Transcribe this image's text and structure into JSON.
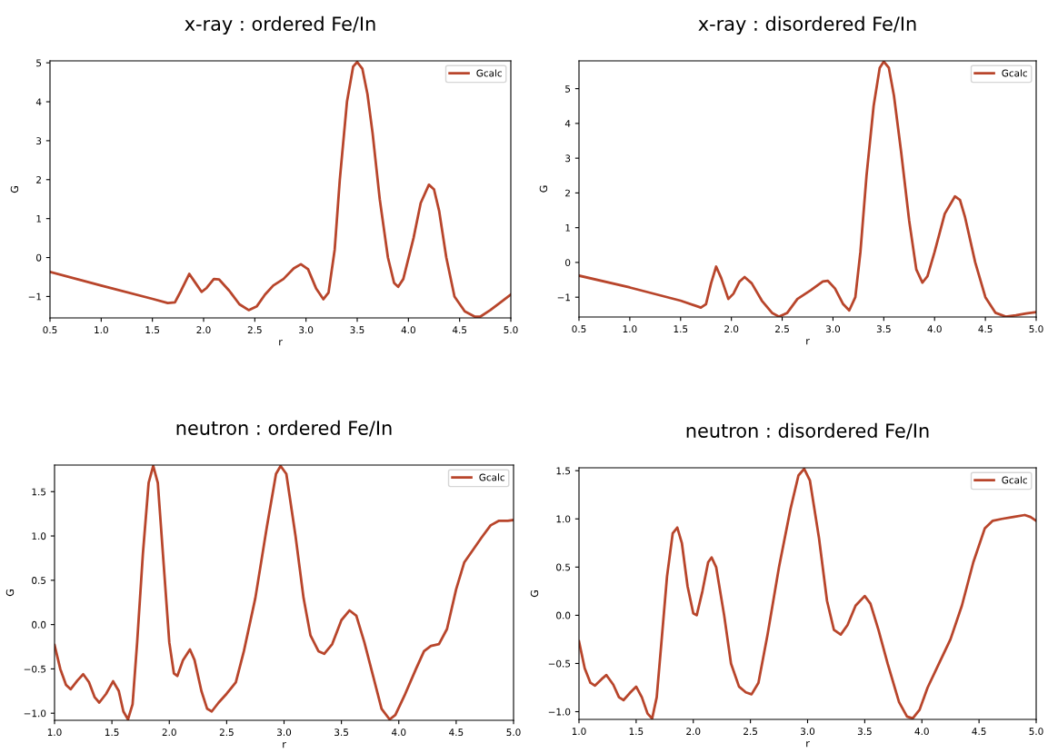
{
  "chart_data": [
    {
      "type": "line",
      "title": "x-ray : ordered Fe/In",
      "xlabel": "r",
      "ylabel": "G",
      "legend": "top right",
      "grid": false,
      "marker": "none",
      "line_style": "solid",
      "xlim": [
        0.5,
        5.0
      ],
      "ylim": [
        -1.55,
        5.05
      ],
      "xticks": [
        {
          "value": 0.5,
          "label": "0.5"
        },
        {
          "value": 1.0,
          "label": "1.0"
        },
        {
          "value": 1.5,
          "label": "1.5"
        },
        {
          "value": 2.0,
          "label": "2.0"
        },
        {
          "value": 2.5,
          "label": "2.5"
        },
        {
          "value": 3.0,
          "label": "3.0"
        },
        {
          "value": 3.5,
          "label": "3.5"
        },
        {
          "value": 4.0,
          "label": "4.0"
        },
        {
          "value": 4.5,
          "label": "4.5"
        },
        {
          "value": 5.0,
          "label": "5.0"
        }
      ],
      "yticks": [
        {
          "value": -1,
          "label": "−1"
        },
        0,
        1,
        2,
        3,
        4,
        5
      ],
      "series": [
        {
          "name": "Gcalc",
          "color": "#b8452b",
          "x": [
            0.5,
            1.0,
            1.5,
            1.65,
            1.72,
            1.78,
            1.86,
            1.92,
            1.98,
            2.03,
            2.1,
            2.15,
            2.25,
            2.35,
            2.44,
            2.52,
            2.6,
            2.68,
            2.78,
            2.88,
            2.95,
            3.02,
            3.1,
            3.17,
            3.22,
            3.28,
            3.33,
            3.4,
            3.46,
            3.5,
            3.55,
            3.6,
            3.65,
            3.72,
            3.8,
            3.86,
            3.9,
            3.95,
            4.05,
            4.12,
            4.2,
            4.25,
            4.3,
            4.37,
            4.45,
            4.55,
            4.65,
            4.7,
            4.8,
            4.9,
            5.0
          ],
          "values": [
            -0.37,
            -0.72,
            -1.06,
            -1.17,
            -1.15,
            -0.85,
            -0.42,
            -0.65,
            -0.88,
            -0.78,
            -0.55,
            -0.56,
            -0.85,
            -1.2,
            -1.35,
            -1.25,
            -0.95,
            -0.72,
            -0.55,
            -0.28,
            -0.17,
            -0.3,
            -0.8,
            -1.07,
            -0.9,
            0.2,
            2.0,
            4.0,
            4.9,
            5.02,
            4.85,
            4.2,
            3.2,
            1.5,
            0.0,
            -0.65,
            -0.75,
            -0.55,
            0.5,
            1.4,
            1.87,
            1.75,
            1.2,
            0.0,
            -1.0,
            -1.38,
            -1.52,
            -1.52,
            -1.35,
            -1.15,
            -0.95
          ]
        }
      ]
    },
    {
      "type": "line",
      "title": "x-ray : disordered Fe/In",
      "xlabel": "r",
      "ylabel": "G",
      "legend": "top right",
      "grid": false,
      "marker": "none",
      "line_style": "solid",
      "xlim": [
        0.5,
        5.0
      ],
      "ylim": [
        -1.57,
        5.8
      ],
      "xticks": [
        {
          "value": 0.5,
          "label": "0.5"
        },
        {
          "value": 1.0,
          "label": "1.0"
        },
        {
          "value": 1.5,
          "label": "1.5"
        },
        {
          "value": 2.0,
          "label": "2.0"
        },
        {
          "value": 2.5,
          "label": "2.5"
        },
        {
          "value": 3.0,
          "label": "3.0"
        },
        {
          "value": 3.5,
          "label": "3.5"
        },
        {
          "value": 4.0,
          "label": "4.0"
        },
        {
          "value": 4.5,
          "label": "4.5"
        },
        {
          "value": 5.0,
          "label": "5.0"
        }
      ],
      "yticks": [
        {
          "value": -1,
          "label": "−1"
        },
        0,
        1,
        2,
        3,
        4,
        5
      ],
      "series": [
        {
          "name": "Gcalc",
          "color": "#b8452b",
          "x": [
            0.5,
            1.0,
            1.5,
            1.7,
            1.75,
            1.8,
            1.85,
            1.9,
            1.97,
            2.02,
            2.08,
            2.13,
            2.2,
            2.3,
            2.4,
            2.47,
            2.55,
            2.65,
            2.78,
            2.9,
            2.95,
            3.02,
            3.1,
            3.16,
            3.22,
            3.27,
            3.33,
            3.4,
            3.46,
            3.5,
            3.55,
            3.6,
            3.67,
            3.75,
            3.82,
            3.88,
            3.93,
            4.0,
            4.1,
            4.2,
            4.25,
            4.3,
            4.4,
            4.5,
            4.6,
            4.7,
            4.8,
            4.9,
            5.0
          ],
          "values": [
            -0.38,
            -0.72,
            -1.1,
            -1.3,
            -1.2,
            -0.6,
            -0.12,
            -0.45,
            -1.05,
            -0.9,
            -0.55,
            -0.42,
            -0.6,
            -1.1,
            -1.45,
            -1.56,
            -1.45,
            -1.05,
            -0.8,
            -0.55,
            -0.53,
            -0.75,
            -1.2,
            -1.38,
            -1.0,
            0.3,
            2.5,
            4.5,
            5.6,
            5.78,
            5.6,
            4.8,
            3.2,
            1.2,
            -0.2,
            -0.58,
            -0.4,
            0.3,
            1.4,
            1.9,
            1.8,
            1.3,
            0.0,
            -1.0,
            -1.45,
            -1.56,
            -1.52,
            -1.47,
            -1.43
          ]
        }
      ]
    },
    {
      "type": "line",
      "title": "neutron : ordered Fe/In",
      "xlabel": "r",
      "ylabel": "G",
      "legend": "top right",
      "grid": false,
      "marker": "none",
      "line_style": "solid",
      "xlim": [
        1.0,
        5.0
      ],
      "ylim": [
        -1.08,
        1.8
      ],
      "xticks": [
        {
          "value": 1.0,
          "label": "1.0"
        },
        {
          "value": 1.5,
          "label": "1.5"
        },
        {
          "value": 2.0,
          "label": "2.0"
        },
        {
          "value": 2.5,
          "label": "2.5"
        },
        {
          "value": 3.0,
          "label": "3.0"
        },
        {
          "value": 3.5,
          "label": "3.5"
        },
        {
          "value": 4.0,
          "label": "4.0"
        },
        {
          "value": 4.5,
          "label": "4.5"
        },
        {
          "value": 5.0,
          "label": "5.0"
        }
      ],
      "yticks": [
        {
          "value": -1.0,
          "label": "−1.0"
        },
        {
          "value": -0.5,
          "label": "−0.5"
        },
        {
          "value": 0.0,
          "label": "0.0"
        },
        {
          "value": 0.5,
          "label": "0.5"
        },
        {
          "value": 1.0,
          "label": "1.0"
        },
        {
          "value": 1.5,
          "label": "1.5"
        }
      ],
      "series": [
        {
          "name": "Gcalc",
          "color": "#b8452b",
          "x": [
            1.0,
            1.05,
            1.1,
            1.14,
            1.2,
            1.25,
            1.3,
            1.35,
            1.39,
            1.45,
            1.51,
            1.56,
            1.6,
            1.64,
            1.68,
            1.72,
            1.77,
            1.82,
            1.86,
            1.9,
            1.95,
            2.0,
            2.04,
            2.07,
            2.12,
            2.18,
            2.22,
            2.28,
            2.33,
            2.37,
            2.43,
            2.5,
            2.58,
            2.65,
            2.75,
            2.85,
            2.93,
            2.97,
            3.02,
            3.1,
            3.17,
            3.23,
            3.3,
            3.35,
            3.42,
            3.5,
            3.57,
            3.63,
            3.7,
            3.78,
            3.85,
            3.92,
            3.97,
            4.05,
            4.15,
            4.22,
            4.28,
            4.35,
            4.42,
            4.5,
            4.57,
            4.65,
            4.72,
            4.8,
            4.87,
            4.95,
            5.0
          ],
          "values": [
            -0.23,
            -0.5,
            -0.68,
            -0.73,
            -0.63,
            -0.56,
            -0.65,
            -0.82,
            -0.88,
            -0.78,
            -0.64,
            -0.75,
            -0.98,
            -1.07,
            -0.9,
            -0.2,
            0.8,
            1.6,
            1.79,
            1.6,
            0.7,
            -0.2,
            -0.55,
            -0.58,
            -0.4,
            -0.28,
            -0.4,
            -0.75,
            -0.95,
            -0.98,
            -0.88,
            -0.78,
            -0.65,
            -0.3,
            0.3,
            1.1,
            1.7,
            1.79,
            1.7,
            1.0,
            0.3,
            -0.12,
            -0.3,
            -0.33,
            -0.22,
            0.05,
            0.16,
            0.1,
            -0.2,
            -0.6,
            -0.95,
            -1.07,
            -1.02,
            -0.8,
            -0.5,
            -0.3,
            -0.24,
            -0.22,
            -0.05,
            0.4,
            0.7,
            0.85,
            0.98,
            1.12,
            1.17,
            1.17,
            1.18
          ]
        }
      ]
    },
    {
      "type": "line",
      "title": "neutron : disordered Fe/In",
      "xlabel": "r",
      "ylabel": "G",
      "legend": "top right",
      "grid": false,
      "marker": "none",
      "line_style": "solid",
      "xlim": [
        1.0,
        5.0
      ],
      "ylim": [
        -1.08,
        1.53
      ],
      "xticks": [
        {
          "value": 1.0,
          "label": "1.0"
        },
        {
          "value": 1.5,
          "label": "1.5"
        },
        {
          "value": 2.0,
          "label": "2.0"
        },
        {
          "value": 2.5,
          "label": "2.5"
        },
        {
          "value": 3.0,
          "label": "3.0"
        },
        {
          "value": 3.5,
          "label": "3.5"
        },
        {
          "value": 4.0,
          "label": "4.0"
        },
        {
          "value": 4.5,
          "label": "4.5"
        },
        {
          "value": 5.0,
          "label": "5.0"
        }
      ],
      "yticks": [
        {
          "value": -1.0,
          "label": "−1.0"
        },
        {
          "value": -0.5,
          "label": "−0.5"
        },
        {
          "value": 0.0,
          "label": "0.0"
        },
        {
          "value": 0.5,
          "label": "0.5"
        },
        {
          "value": 1.0,
          "label": "1.0"
        },
        {
          "value": 1.5,
          "label": "1.5"
        }
      ],
      "series": [
        {
          "name": "Gcalc",
          "color": "#b8452b",
          "x": [
            1.0,
            1.05,
            1.1,
            1.14,
            1.2,
            1.24,
            1.3,
            1.35,
            1.39,
            1.45,
            1.5,
            1.55,
            1.6,
            1.64,
            1.68,
            1.72,
            1.77,
            1.82,
            1.86,
            1.9,
            1.95,
            2.0,
            2.03,
            2.08,
            2.13,
            2.16,
            2.2,
            2.27,
            2.33,
            2.4,
            2.46,
            2.51,
            2.57,
            2.65,
            2.75,
            2.85,
            2.92,
            2.97,
            3.02,
            3.1,
            3.17,
            3.23,
            3.29,
            3.35,
            3.42,
            3.5,
            3.55,
            3.62,
            3.7,
            3.8,
            3.87,
            3.92,
            3.98,
            4.05,
            4.15,
            4.25,
            4.35,
            4.45,
            4.55,
            4.62,
            4.7,
            4.8,
            4.9,
            4.95,
            5.0
          ],
          "values": [
            -0.27,
            -0.55,
            -0.7,
            -0.73,
            -0.66,
            -0.62,
            -0.72,
            -0.85,
            -0.88,
            -0.8,
            -0.74,
            -0.85,
            -1.02,
            -1.07,
            -0.85,
            -0.3,
            0.4,
            0.85,
            0.91,
            0.75,
            0.3,
            0.02,
            0.0,
            0.25,
            0.55,
            0.6,
            0.5,
            0.0,
            -0.5,
            -0.74,
            -0.8,
            -0.82,
            -0.7,
            -0.2,
            0.5,
            1.1,
            1.45,
            1.52,
            1.4,
            0.8,
            0.15,
            -0.15,
            -0.2,
            -0.1,
            0.1,
            0.2,
            0.12,
            -0.15,
            -0.5,
            -0.9,
            -1.05,
            -1.07,
            -0.98,
            -0.75,
            -0.5,
            -0.25,
            0.1,
            0.55,
            0.9,
            0.98,
            1.0,
            1.02,
            1.04,
            1.02,
            0.98
          ]
        }
      ]
    }
  ]
}
